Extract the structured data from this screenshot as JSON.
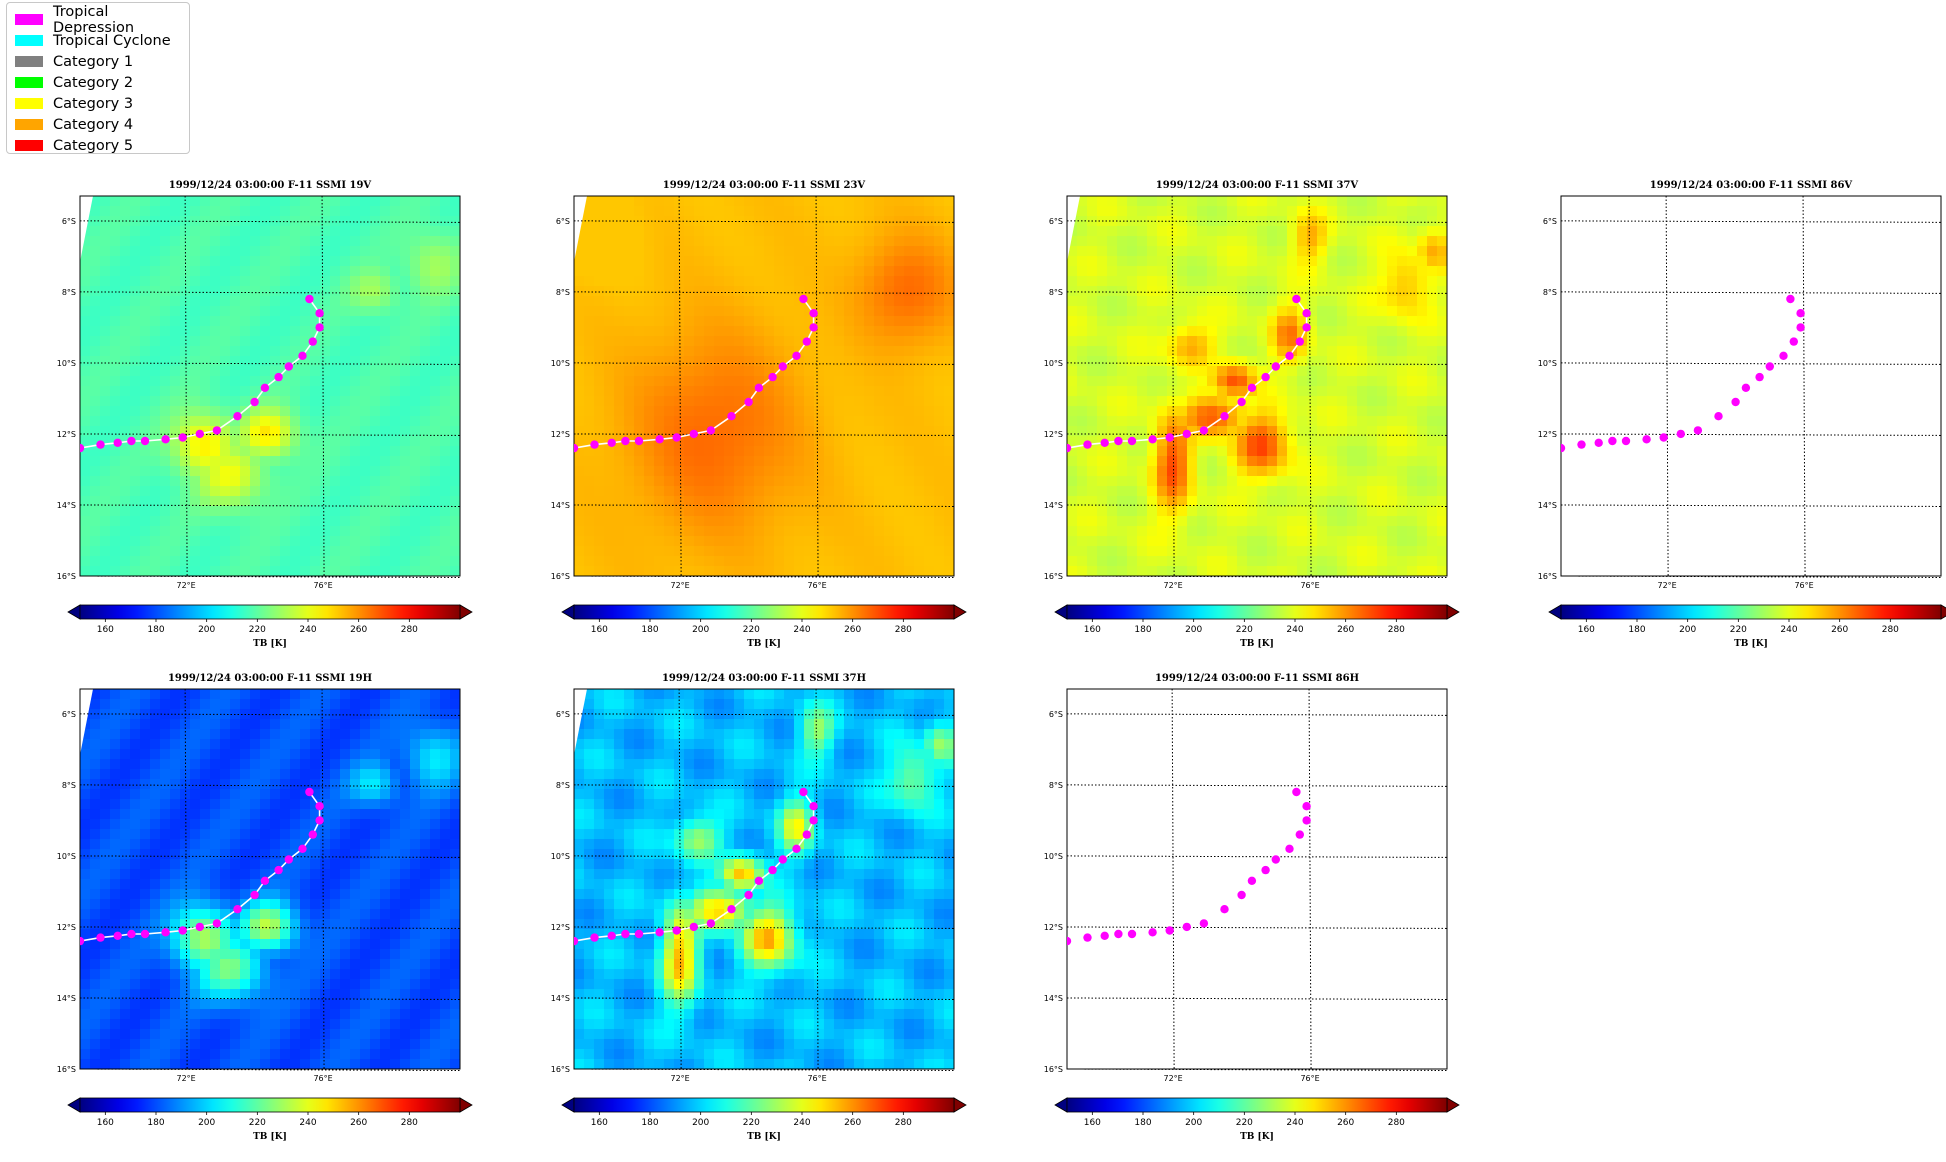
{
  "legend": {
    "items": [
      {
        "label": "Tropical Depression",
        "color": "#ff00ff"
      },
      {
        "label": "Tropical Cyclone",
        "color": "#00ffff"
      },
      {
        "label": "Category 1",
        "color": "#808080"
      },
      {
        "label": "Category 2",
        "color": "#00ff00"
      },
      {
        "label": "Category 3",
        "color": "#ffff00"
      },
      {
        "label": "Category 4",
        "color": "#ffa500"
      },
      {
        "label": "Category 5",
        "color": "#ff0000"
      }
    ]
  },
  "chart_data": [
    {
      "type": "heatmap",
      "title": "1999/12/24 03:00:00  F-11 SSMI 19V",
      "channel": "19V",
      "field": "mild",
      "base_tb": 215,
      "hot_tb": 245,
      "show_track_line": true
    },
    {
      "type": "heatmap",
      "title": "1999/12/24 03:00:00  F-11 SSMI 23V",
      "channel": "23V",
      "field": "warm",
      "base_tb": 252,
      "hot_tb": 265,
      "show_track_line": true
    },
    {
      "type": "heatmap",
      "title": "1999/12/24 03:00:00  F-11 SSMI 37V",
      "channel": "37V",
      "field": "convective",
      "base_tb": 233,
      "hot_tb": 265,
      "show_track_line": true
    },
    {
      "type": "heatmap",
      "title": "1999/12/24 03:00:00  F-11 SSMI 86V",
      "channel": "86V",
      "field": "none",
      "show_track_line": false
    },
    {
      "type": "heatmap",
      "title": "1999/12/24 03:00:00  F-11 SSMI 19H",
      "channel": "19H",
      "field": "mild",
      "base_tb": 176,
      "hot_tb": 230,
      "show_track_line": true
    },
    {
      "type": "heatmap",
      "title": "1999/12/24 03:00:00  F-11 SSMI 37H",
      "channel": "37H",
      "field": "convective",
      "base_tb": 188,
      "hot_tb": 245,
      "show_track_line": true
    },
    {
      "type": "heatmap",
      "title": "1999/12/24 03:00:00  F-11 SSMI 86H",
      "channel": "86H",
      "field": "none",
      "show_track_line": false
    }
  ],
  "map": {
    "lon_range": [
      68.9,
      80.0
    ],
    "lat_range": [
      -16.0,
      -5.3
    ],
    "lon_ticks": [
      {
        "value": 72,
        "label": "72°E"
      },
      {
        "value": 76,
        "label": "76°E"
      }
    ],
    "lat_ticks": [
      {
        "value": -6,
        "label": "6°S"
      },
      {
        "value": -8,
        "label": "8°S"
      },
      {
        "value": -10,
        "label": "10°S"
      },
      {
        "value": -12,
        "label": "12°S"
      },
      {
        "value": -14,
        "label": "14°S"
      },
      {
        "value": -16,
        "label": "16°S"
      }
    ],
    "grid": "dotted"
  },
  "colorbar": {
    "label": "TB [K]",
    "range": [
      150,
      300
    ],
    "ticks": [
      160,
      180,
      200,
      220,
      240,
      260,
      280
    ],
    "colormap": "jet",
    "extend": "both"
  },
  "track": {
    "category": "Tropical Depression",
    "color": "#ff00ff",
    "points": [
      {
        "lon": 68.9,
        "lat": -12.4
      },
      {
        "lon": 69.5,
        "lat": -12.3
      },
      {
        "lon": 70.0,
        "lat": -12.25
      },
      {
        "lon": 70.4,
        "lat": -12.2
      },
      {
        "lon": 70.8,
        "lat": -12.2
      },
      {
        "lon": 71.4,
        "lat": -12.15
      },
      {
        "lon": 71.9,
        "lat": -12.1
      },
      {
        "lon": 72.4,
        "lat": -12.0
      },
      {
        "lon": 72.9,
        "lat": -11.9
      },
      {
        "lon": 73.5,
        "lat": -11.5
      },
      {
        "lon": 74.0,
        "lat": -11.1
      },
      {
        "lon": 74.3,
        "lat": -10.7
      },
      {
        "lon": 74.7,
        "lat": -10.4
      },
      {
        "lon": 75.0,
        "lat": -10.1
      },
      {
        "lon": 75.4,
        "lat": -9.8
      },
      {
        "lon": 75.7,
        "lat": -9.4
      },
      {
        "lon": 75.9,
        "lat": -9.0
      },
      {
        "lon": 75.9,
        "lat": -8.6
      },
      {
        "lon": 75.6,
        "lat": -8.2
      }
    ]
  }
}
